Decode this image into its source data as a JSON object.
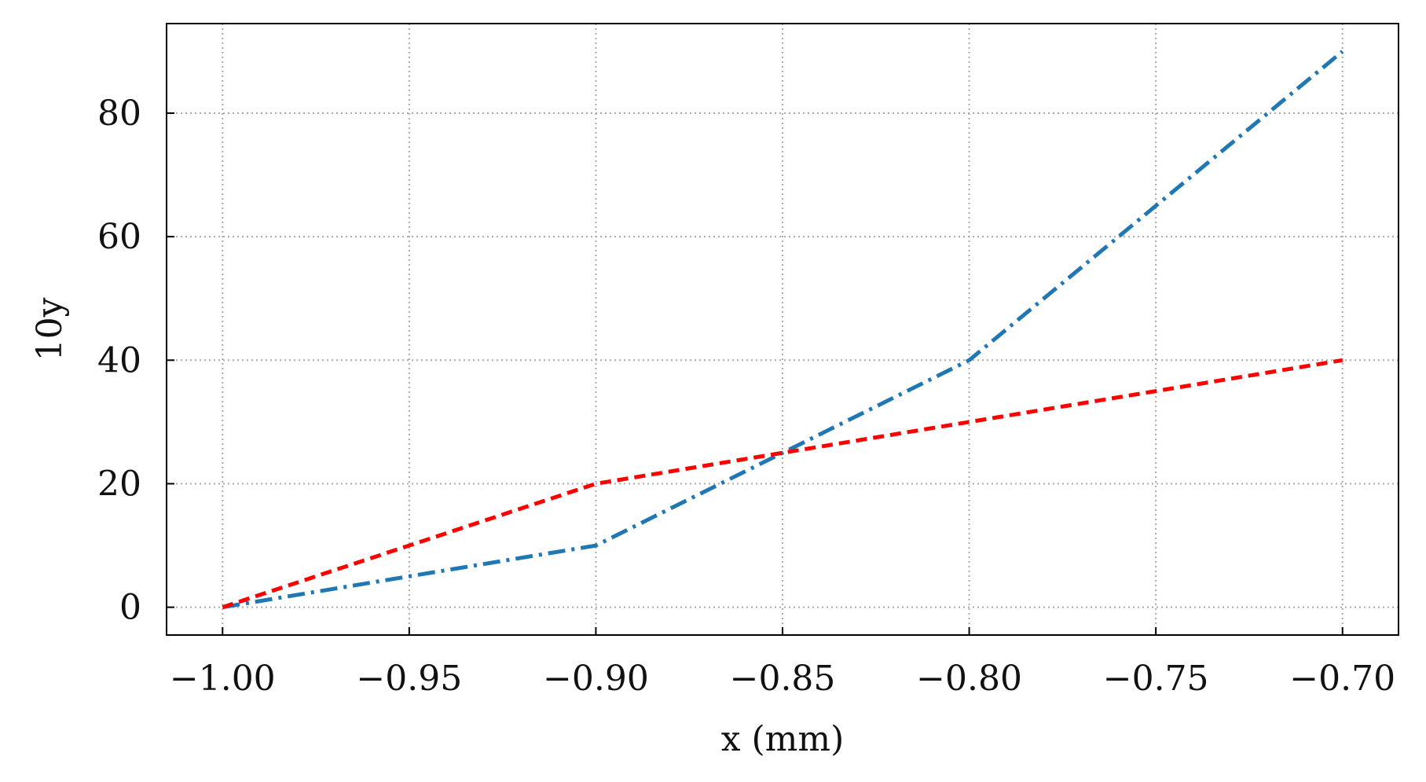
{
  "chart_data": {
    "type": "line",
    "title": "",
    "xlabel": "x (mm)",
    "ylabel": "10y",
    "xlim": [
      -1.015,
      -0.685
    ],
    "ylim": [
      -4.5,
      94.5
    ],
    "grid": true,
    "x_ticks": [
      -1.0,
      -0.95,
      -0.9,
      -0.85,
      -0.8,
      -0.75,
      -0.7
    ],
    "x_tick_labels": [
      "−1.00",
      "−0.95",
      "−0.90",
      "−0.85",
      "−0.80",
      "−0.75",
      "−0.70"
    ],
    "y_ticks": [
      0,
      20,
      40,
      60,
      80
    ],
    "y_tick_labels": [
      "0",
      "20",
      "40",
      "60",
      "80"
    ],
    "series": [
      {
        "x": [
          -1.0,
          -0.95,
          -0.9,
          -0.85,
          -0.8,
          -0.75,
          -0.7
        ],
        "y": [
          0,
          5,
          10,
          25,
          40,
          65,
          90
        ],
        "color": "#1f77b4",
        "linestyle": "dashdot"
      },
      {
        "x": [
          -1.0,
          -0.95,
          -0.9,
          -0.85,
          -0.8,
          -0.75,
          -0.7
        ],
        "y": [
          0,
          10,
          20,
          25,
          30,
          35,
          40
        ],
        "color": "#ff0000",
        "linestyle": "dashed"
      }
    ]
  }
}
